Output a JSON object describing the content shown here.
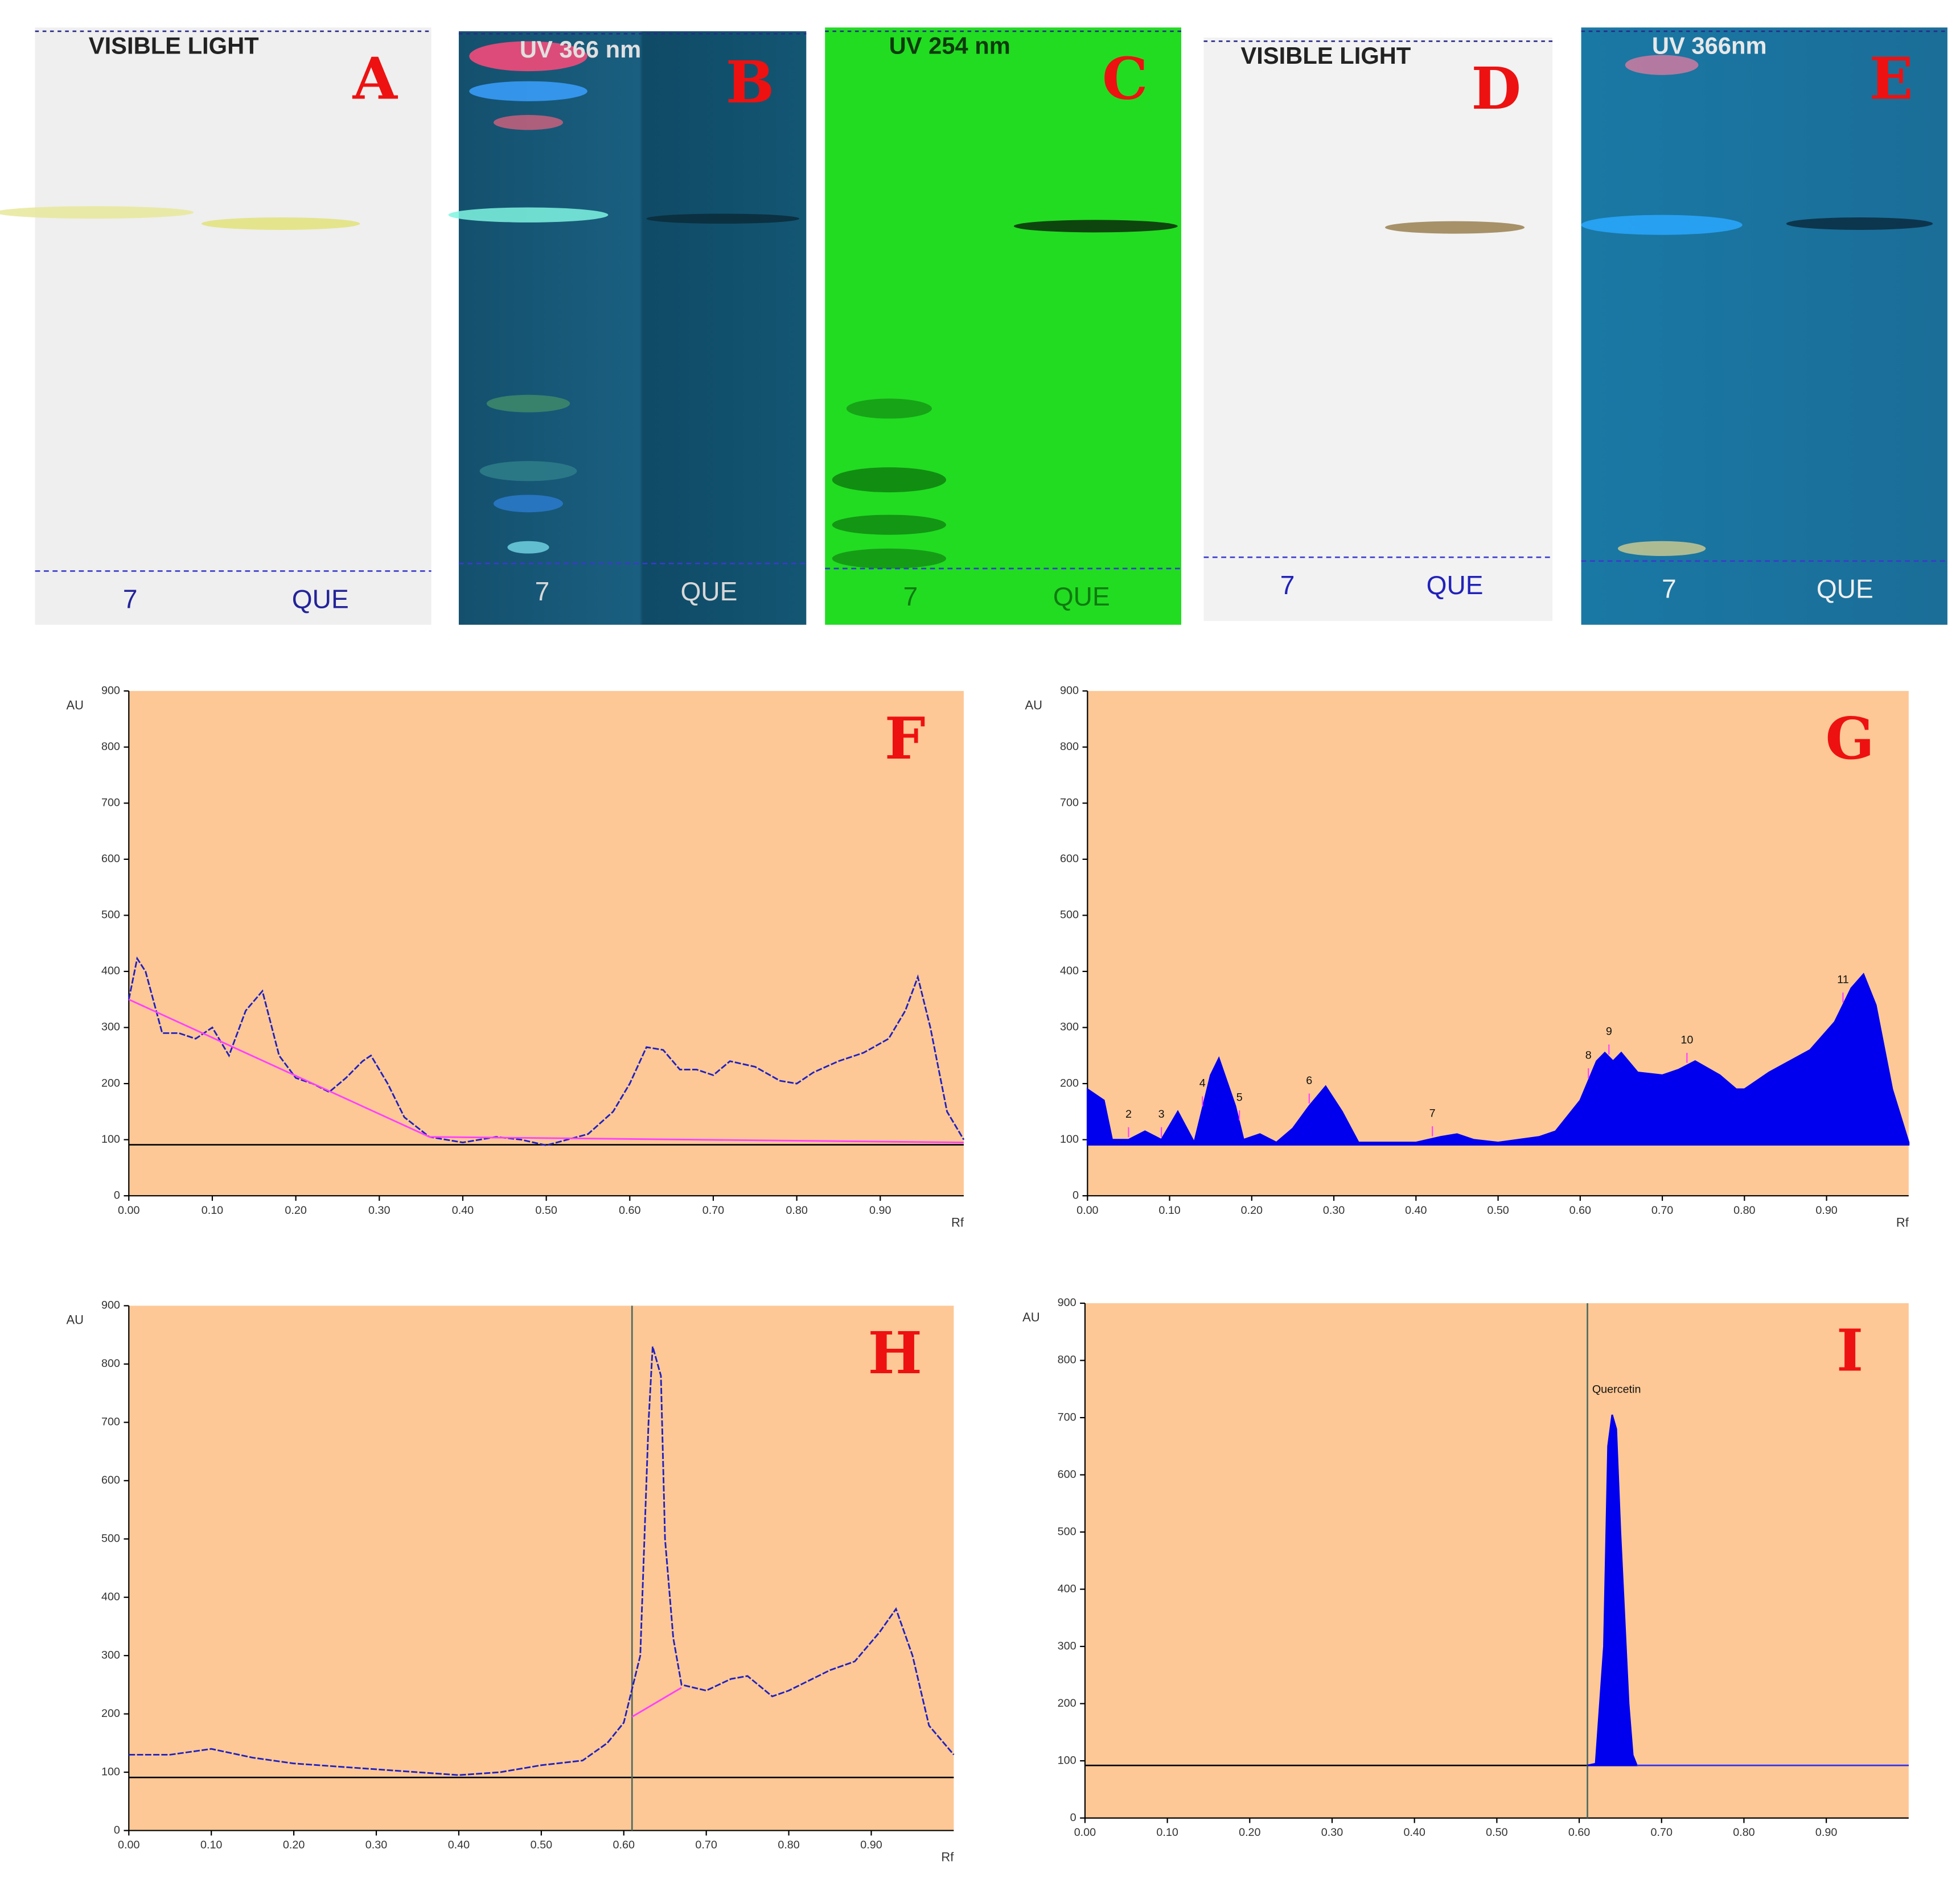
{
  "plates": [
    {
      "label": "A",
      "title": "VISIBLE LIGHT",
      "lanes": [
        "7",
        "QUE"
      ]
    },
    {
      "label": "B",
      "title": "UV 366 nm",
      "lanes": [
        "7",
        "QUE"
      ]
    },
    {
      "label": "C",
      "title": "UV 254 nm",
      "lanes": [
        "7",
        "QUE"
      ]
    },
    {
      "label": "D",
      "title": "VISIBLE LIGHT",
      "lanes": [
        "7",
        "QUE"
      ]
    },
    {
      "label": "E",
      "title": "UV 366nm",
      "lanes": [
        "7",
        "QUE"
      ]
    }
  ],
  "chart_data": [
    {
      "type": "line",
      "title": "F",
      "ylabel": "AU",
      "xlabel": "Rf",
      "xlim": [
        0,
        1
      ],
      "ylim": [
        0,
        900
      ],
      "baseline": 91,
      "xticks": [
        {
          "value": 0,
          "label": "0.00"
        },
        {
          "value": 0.1,
          "label": "0.10"
        },
        {
          "value": 0.2,
          "label": "0.20"
        },
        {
          "value": 0.3,
          "label": "0.30"
        },
        {
          "value": 0.4,
          "label": "0.40"
        },
        {
          "value": 0.5,
          "label": "0.50"
        },
        {
          "value": 0.6,
          "label": "0.60"
        },
        {
          "value": 0.7,
          "label": "0.70"
        },
        {
          "value": 0.8,
          "label": "0.80"
        },
        {
          "value": 0.9,
          "label": "0.90"
        }
      ],
      "yticks": [
        0,
        100,
        200,
        300,
        400,
        500,
        600,
        700,
        800,
        900
      ],
      "series": [
        {
          "color": "#2020c0",
          "x": [
            0,
            0.01,
            0.02,
            0.04,
            0.06,
            0.08,
            0.1,
            0.12,
            0.14,
            0.16,
            0.18,
            0.2,
            0.22,
            0.24,
            0.26,
            0.28,
            0.29,
            0.31,
            0.33,
            0.36,
            0.4,
            0.44,
            0.47,
            0.5,
            0.55,
            0.58,
            0.6,
            0.62,
            0.64,
            0.66,
            0.68,
            0.7,
            0.72,
            0.75,
            0.78,
            0.8,
            0.82,
            0.85,
            0.88,
            0.91,
            0.93,
            0.945,
            0.96,
            0.98,
            1.0
          ],
          "values": [
            350,
            423,
            400,
            290,
            290,
            280,
            300,
            250,
            330,
            365,
            250,
            210,
            200,
            185,
            210,
            240,
            250,
            200,
            140,
            105,
            95,
            105,
            100,
            90,
            110,
            150,
            200,
            265,
            260,
            225,
            225,
            215,
            240,
            230,
            205,
            200,
            220,
            240,
            255,
            280,
            330,
            390,
            300,
            150,
            100
          ]
        },
        {
          "color": "#ff40ff",
          "x": [
            0,
            0.36,
            1.0
          ],
          "values": [
            350,
            105,
            95
          ]
        }
      ]
    },
    {
      "type": "area",
      "title": "G",
      "ylabel": "AU",
      "xlabel": "Rf",
      "xlim": [
        0,
        1
      ],
      "ylim": [
        0,
        900
      ],
      "baseline": 91,
      "xticks": [
        {
          "value": 0,
          "label": "0.00"
        },
        {
          "value": 0.1,
          "label": "0.10"
        },
        {
          "value": 0.2,
          "label": "0.20"
        },
        {
          "value": 0.3,
          "label": "0.30"
        },
        {
          "value": 0.4,
          "label": "0.40"
        },
        {
          "value": 0.5,
          "label": "0.50"
        },
        {
          "value": 0.6,
          "label": "0.60"
        },
        {
          "value": 0.7,
          "label": "0.70"
        },
        {
          "value": 0.8,
          "label": "0.80"
        },
        {
          "value": 0.9,
          "label": "0.90"
        }
      ],
      "yticks": [
        0,
        100,
        200,
        300,
        400,
        500,
        600,
        700,
        800,
        900
      ],
      "series": [
        {
          "color": "#0000ee",
          "x": [
            0,
            0.02,
            0.03,
            0.05,
            0.07,
            0.09,
            0.11,
            0.13,
            0.15,
            0.16,
            0.18,
            0.19,
            0.21,
            0.23,
            0.25,
            0.27,
            0.29,
            0.31,
            0.33,
            0.4,
            0.43,
            0.45,
            0.47,
            0.5,
            0.55,
            0.57,
            0.6,
            0.62,
            0.63,
            0.64,
            0.65,
            0.67,
            0.7,
            0.72,
            0.74,
            0.77,
            0.79,
            0.8,
            0.83,
            0.88,
            0.91,
            0.93,
            0.945,
            0.96,
            0.98,
            1.0
          ],
          "values": [
            190,
            170,
            100,
            100,
            115,
            100,
            150,
            95,
            215,
            245,
            160,
            100,
            110,
            95,
            120,
            160,
            195,
            150,
            95,
            95,
            105,
            110,
            100,
            95,
            105,
            115,
            170,
            240,
            255,
            240,
            255,
            220,
            215,
            225,
            240,
            215,
            190,
            190,
            220,
            260,
            310,
            370,
            395,
            340,
            190,
            95
          ]
        }
      ],
      "peaks": [
        {
          "label": "2",
          "x": 0.05
        },
        {
          "label": "3",
          "x": 0.09
        },
        {
          "label": "4",
          "x": 0.14
        },
        {
          "label": "5",
          "x": 0.185
        },
        {
          "label": "6",
          "x": 0.27
        },
        {
          "label": "7",
          "x": 0.42
        },
        {
          "label": "8",
          "x": 0.61
        },
        {
          "label": "9",
          "x": 0.635
        },
        {
          "label": "10",
          "x": 0.73
        },
        {
          "label": "11",
          "x": 0.92
        }
      ]
    },
    {
      "type": "line",
      "title": "H",
      "ylabel": "AU",
      "xlabel": "Rf",
      "xlim": [
        0,
        1
      ],
      "ylim": [
        0,
        900
      ],
      "baseline": 91,
      "marker_x": 0.61,
      "xticks": [
        {
          "value": 0,
          "label": "0.00"
        },
        {
          "value": 0.1,
          "label": "0.10"
        },
        {
          "value": 0.2,
          "label": "0.20"
        },
        {
          "value": 0.3,
          "label": "0.30"
        },
        {
          "value": 0.4,
          "label": "0.40"
        },
        {
          "value": 0.5,
          "label": "0.50"
        },
        {
          "value": 0.6,
          "label": "0.60"
        },
        {
          "value": 0.7,
          "label": "0.70"
        },
        {
          "value": 0.8,
          "label": "0.80"
        },
        {
          "value": 0.9,
          "label": "0.90"
        }
      ],
      "yticks": [
        0,
        100,
        200,
        300,
        400,
        500,
        600,
        700,
        800,
        900
      ],
      "series": [
        {
          "color": "#2020c0",
          "x": [
            0,
            0.05,
            0.1,
            0.15,
            0.2,
            0.3,
            0.4,
            0.45,
            0.5,
            0.55,
            0.58,
            0.6,
            0.62,
            0.63,
            0.635,
            0.645,
            0.65,
            0.66,
            0.67,
            0.7,
            0.73,
            0.75,
            0.78,
            0.8,
            0.85,
            0.88,
            0.91,
            0.93,
            0.95,
            0.97,
            1.0
          ],
          "values": [
            130,
            130,
            140,
            125,
            115,
            105,
            95,
            100,
            112,
            120,
            150,
            185,
            300,
            700,
            830,
            780,
            500,
            330,
            250,
            240,
            260,
            265,
            230,
            240,
            275,
            290,
            340,
            380,
            300,
            180,
            130
          ]
        },
        {
          "color": "#ff40ff",
          "x": [
            0.61,
            0.67
          ],
          "values": [
            195,
            245
          ]
        }
      ]
    },
    {
      "type": "area",
      "title": "I",
      "ylabel": "AU",
      "xlim": [
        0,
        1
      ],
      "ylim": [
        0,
        900
      ],
      "baseline": 92,
      "marker_x": 0.61,
      "xticks": [
        {
          "value": 0,
          "label": "0.00"
        },
        {
          "value": 0.1,
          "label": "0.10"
        },
        {
          "value": 0.2,
          "label": "0.20"
        },
        {
          "value": 0.3,
          "label": "0.30"
        },
        {
          "value": 0.4,
          "label": "0.40"
        },
        {
          "value": 0.5,
          "label": "0.50"
        },
        {
          "value": 0.6,
          "label": "0.60"
        },
        {
          "value": 0.7,
          "label": "0.70"
        },
        {
          "value": 0.8,
          "label": "0.80"
        },
        {
          "value": 0.9,
          "label": "0.90"
        }
      ],
      "yticks": [
        0,
        100,
        200,
        300,
        400,
        500,
        600,
        700,
        800,
        900
      ],
      "series": [
        {
          "name": "Quercetin",
          "color": "#0000ee",
          "x": [
            0.61,
            0.62,
            0.63,
            0.635,
            0.64,
            0.645,
            0.65,
            0.66,
            0.665,
            0.67
          ],
          "values": [
            92,
            95,
            300,
            650,
            705,
            680,
            500,
            200,
            110,
            92
          ]
        }
      ]
    }
  ]
}
